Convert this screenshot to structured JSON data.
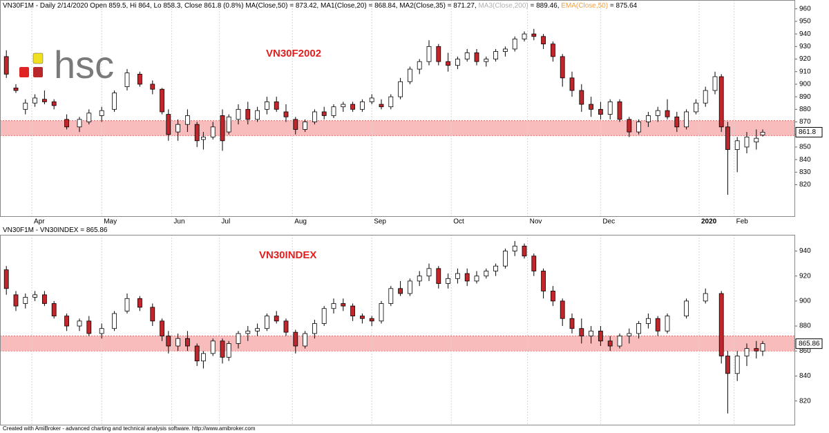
{
  "logo_text": "hsc",
  "footer": "Created with AmiBroker - advanced charting and technical analysis software. http://www.amibroker.com",
  "chart_data": [
    {
      "type": "candlestick",
      "header": [
        "VN30F1M - Daily 2/14/2020 Open 859.5, Hi 864, Lo 858.3, Close 861.8 (0.8%) MA(Close,50) = 873.42, MA1(Close,20) = 868.84, MA2(Close,35) = 871.27, ",
        "MA3(Close,200)",
        " = 889.46, ",
        "EMA(Close,50)",
        " = 875.64"
      ],
      "title": "VN30F2002",
      "up_color": "#ffffff",
      "down_color": "#c0272d",
      "zone_color": "#f8bcbc",
      "zone": [
        859,
        871
      ],
      "xlim": [
        0,
        250
      ],
      "xticks": [
        {
          "value": 10,
          "label": "Apr"
        },
        {
          "value": 32,
          "label": "May"
        },
        {
          "value": 54,
          "label": "Jun"
        },
        {
          "value": 69,
          "label": "Jul"
        },
        {
          "value": 92,
          "label": "Aug"
        },
        {
          "value": 117,
          "label": "Sep"
        },
        {
          "value": 142,
          "label": "Oct"
        },
        {
          "value": 166,
          "label": "Nov"
        },
        {
          "value": 189,
          "label": "Dec"
        },
        {
          "value": 220,
          "label": "2020"
        },
        {
          "value": 231,
          "label": "Feb"
        }
      ],
      "ylim": [
        795,
        967
      ],
      "yticks": [
        820,
        830,
        840,
        850,
        860,
        870,
        880,
        890,
        900,
        910,
        920,
        930,
        940,
        950,
        960
      ],
      "x": [
        2,
        5,
        8,
        11,
        14,
        17,
        21,
        25,
        28,
        32,
        36,
        40,
        44,
        48,
        51,
        53,
        56,
        59,
        62,
        64,
        67,
        70,
        72,
        75,
        78,
        81,
        84,
        87,
        90,
        93,
        96,
        99,
        102,
        105,
        108,
        111,
        114,
        117,
        120,
        123,
        126,
        129,
        132,
        135,
        138,
        141,
        144,
        147,
        150,
        153,
        156,
        159,
        162,
        165,
        168,
        171,
        174,
        177,
        180,
        183,
        186,
        189,
        192,
        195,
        198,
        201,
        204,
        207,
        210,
        213,
        216,
        219,
        222,
        225,
        227,
        229,
        232,
        235,
        238,
        240
      ],
      "open": [
        922,
        897,
        880,
        885,
        888,
        886,
        872,
        866,
        870,
        875,
        880,
        898,
        908,
        900,
        896,
        876,
        862,
        868,
        868,
        856,
        858,
        875,
        862,
        872,
        880,
        872,
        880,
        886,
        878,
        872,
        864,
        870,
        878,
        875,
        882,
        884,
        880,
        886,
        884,
        882,
        890,
        902,
        912,
        918,
        930,
        918,
        915,
        920,
        925,
        918,
        920,
        926,
        928,
        936,
        940,
        938,
        932,
        922,
        905,
        895,
        884,
        880,
        876,
        886,
        872,
        862,
        870,
        875,
        879,
        874,
        866,
        878,
        885,
        895,
        906,
        866,
        848,
        850,
        854,
        859.5
      ],
      "high": [
        927,
        900,
        888,
        892,
        895,
        888,
        876,
        874,
        880,
        882,
        895,
        912,
        910,
        903,
        897,
        880,
        872,
        880,
        870,
        862,
        870,
        880,
        876,
        884,
        886,
        882,
        890,
        890,
        884,
        874,
        872,
        880,
        882,
        884,
        886,
        886,
        888,
        892,
        888,
        892,
        905,
        914,
        920,
        935,
        932,
        925,
        922,
        928,
        928,
        922,
        928,
        930,
        938,
        942,
        944,
        940,
        934,
        924,
        910,
        900,
        890,
        886,
        888,
        888,
        874,
        872,
        878,
        882,
        888,
        878,
        880,
        888,
        898,
        910,
        908,
        870,
        858,
        862,
        864,
        864
      ],
      "low": [
        905,
        893,
        876,
        882,
        884,
        880,
        864,
        862,
        868,
        870,
        878,
        895,
        898,
        892,
        876,
        855,
        855,
        862,
        850,
        848,
        856,
        847,
        860,
        868,
        868,
        870,
        876,
        878,
        870,
        860,
        862,
        868,
        872,
        873,
        878,
        878,
        878,
        884,
        880,
        880,
        888,
        900,
        908,
        915,
        915,
        910,
        912,
        918,
        915,
        914,
        918,
        922,
        926,
        934,
        935,
        928,
        918,
        898,
        890,
        878,
        874,
        872,
        872,
        870,
        858,
        860,
        866,
        870,
        872,
        862,
        864,
        876,
        882,
        892,
        862,
        812,
        830,
        845,
        848,
        858.3
      ],
      "close": [
        908,
        895,
        885,
        889,
        886,
        883,
        866,
        872,
        877,
        879,
        893,
        909,
        900,
        896,
        878,
        860,
        868,
        875,
        855,
        858,
        866,
        855,
        874,
        880,
        872,
        879,
        886,
        880,
        874,
        864,
        870,
        878,
        875,
        882,
        884,
        880,
        886,
        889,
        882,
        890,
        902,
        912,
        918,
        930,
        918,
        915,
        920,
        925,
        918,
        920,
        926,
        928,
        936,
        940,
        938,
        932,
        922,
        905,
        895,
        884,
        880,
        876,
        886,
        872,
        862,
        870,
        875,
        879,
        874,
        866,
        878,
        885,
        895,
        906,
        866,
        848,
        855,
        858,
        857,
        861.8
      ]
    },
    {
      "type": "candlestick",
      "header": [
        "VN30F1M - VN30INDEX = 865.86"
      ],
      "title": "VN30INDEX",
      "up_color": "#ffffff",
      "down_color": "#c0272d",
      "zone_color": "#f8bcbc",
      "zone": [
        860,
        872
      ],
      "xlim": [
        0,
        250
      ],
      "xticks": [
        10,
        32,
        54,
        69,
        92,
        117,
        142,
        166,
        189,
        220,
        231
      ],
      "ylim": [
        801,
        953
      ],
      "yticks": [
        820,
        840,
        860,
        880,
        900,
        920,
        940
      ],
      "x": [
        2,
        5,
        8,
        11,
        14,
        17,
        21,
        25,
        28,
        32,
        36,
        40,
        44,
        48,
        51,
        53,
        56,
        59,
        62,
        64,
        67,
        70,
        72,
        75,
        78,
        81,
        84,
        87,
        90,
        93,
        96,
        99,
        102,
        105,
        108,
        111,
        114,
        117,
        120,
        123,
        126,
        129,
        132,
        135,
        138,
        141,
        144,
        147,
        150,
        153,
        156,
        159,
        162,
        165,
        168,
        171,
        174,
        177,
        180,
        183,
        186,
        189,
        192,
        195,
        198,
        201,
        204,
        207,
        210,
        216,
        222,
        227,
        229,
        232,
        235,
        238,
        240
      ],
      "open": [
        925,
        905,
        898,
        903,
        905,
        898,
        888,
        880,
        884,
        874,
        878,
        892,
        902,
        895,
        884,
        872,
        864,
        870,
        864,
        852,
        858,
        868,
        855,
        866,
        874,
        876,
        878,
        888,
        884,
        875,
        864,
        874,
        882,
        894,
        898,
        896,
        888,
        886,
        884,
        898,
        910,
        906,
        916,
        920,
        926,
        914,
        918,
        922,
        916,
        920,
        924,
        928,
        940,
        944,
        936,
        924,
        908,
        900,
        886,
        878,
        872,
        876,
        868,
        864,
        872,
        874,
        882,
        886,
        876,
        888,
        900,
        906,
        856,
        842,
        856,
        862,
        860
      ],
      "high": [
        928,
        908,
        906,
        908,
        908,
        900,
        890,
        886,
        888,
        882,
        892,
        906,
        904,
        898,
        886,
        876,
        874,
        876,
        866,
        860,
        870,
        870,
        868,
        876,
        880,
        882,
        890,
        892,
        886,
        877,
        876,
        885,
        896,
        902,
        902,
        898,
        890,
        888,
        900,
        912,
        916,
        918,
        924,
        930,
        928,
        922,
        926,
        926,
        924,
        926,
        930,
        942,
        948,
        946,
        938,
        926,
        912,
        902,
        890,
        886,
        880,
        880,
        872,
        874,
        878,
        884,
        890,
        888,
        890,
        902,
        910,
        908,
        860,
        860,
        866,
        868,
        868
      ],
      "low": [
        905,
        892,
        894,
        900,
        896,
        886,
        876,
        876,
        872,
        870,
        876,
        890,
        892,
        880,
        868,
        858,
        860,
        860,
        848,
        846,
        856,
        850,
        852,
        862,
        868,
        872,
        876,
        882,
        872,
        858,
        862,
        870,
        880,
        890,
        892,
        884,
        882,
        880,
        882,
        896,
        904,
        904,
        912,
        916,
        910,
        910,
        914,
        912,
        914,
        918,
        920,
        926,
        936,
        934,
        920,
        902,
        896,
        880,
        874,
        866,
        866,
        864,
        860,
        862,
        866,
        870,
        878,
        872,
        874,
        886,
        898,
        850,
        810,
        836,
        848,
        854,
        856
      ],
      "close": [
        910,
        896,
        903,
        905,
        898,
        888,
        880,
        884,
        874,
        878,
        890,
        902,
        895,
        884,
        872,
        864,
        870,
        864,
        852,
        858,
        868,
        855,
        866,
        874,
        876,
        878,
        888,
        884,
        875,
        864,
        874,
        882,
        894,
        898,
        896,
        888,
        886,
        884,
        898,
        910,
        906,
        916,
        920,
        926,
        914,
        918,
        922,
        916,
        920,
        924,
        928,
        940,
        944,
        936,
        924,
        908,
        900,
        886,
        878,
        872,
        876,
        868,
        864,
        872,
        874,
        882,
        886,
        876,
        888,
        900,
        906,
        856,
        842,
        856,
        862,
        860,
        865.86
      ]
    }
  ]
}
